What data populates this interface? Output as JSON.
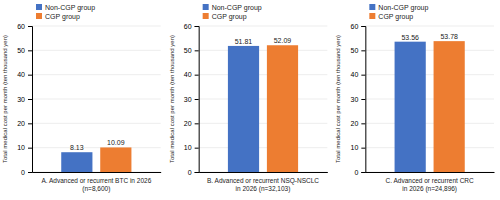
{
  "chart_data": [
    {
      "type": "bar",
      "title": "A. Advanced or recurrent BTC in 2026\n(n=8,600)",
      "ylabel": "Total medical cost per month (ten thousand yen)",
      "categories": [
        null
      ],
      "series": [
        {
          "name": "Non-CGP group",
          "color": "#4472c4",
          "values": [
            8.13
          ]
        },
        {
          "name": "CGP group",
          "color": "#ed7d31",
          "values": [
            10.09
          ]
        }
      ],
      "ylim": [
        0,
        60
      ],
      "yticks": [
        0,
        10,
        20,
        30,
        40,
        50,
        60
      ],
      "grid": true,
      "legend": "upper left",
      "data_labels": true,
      "tick_labels": "y"
    },
    {
      "type": "bar",
      "title": "B. Advanced or recurrent NSQ-NSCLC\nin 2026 (n=32,103)",
      "ylabel": "Total medical cost per month (ten thousand yen)",
      "categories": [
        null
      ],
      "series": [
        {
          "name": "Non-CGP group",
          "color": "#4472c4",
          "values": [
            51.81
          ]
        },
        {
          "name": "CGP group",
          "color": "#ed7d31",
          "values": [
            52.09
          ]
        }
      ],
      "ylim": [
        0,
        60
      ],
      "yticks": [
        0,
        10,
        20,
        30,
        40,
        50,
        60
      ],
      "grid": true,
      "legend": "upper left",
      "data_labels": true,
      "tick_labels": "y"
    },
    {
      "type": "bar",
      "title": "C. Advanced or recurrent CRC\nin 2026 (n=24,896)",
      "ylabel": "Total medical cost per month (ten thousand yen)",
      "categories": [
        null
      ],
      "series": [
        {
          "name": "Non-CGP group",
          "color": "#4472c4",
          "values": [
            53.56
          ]
        },
        {
          "name": "CGP group",
          "color": "#ed7d31",
          "values": [
            53.78
          ]
        }
      ],
      "ylim": [
        0,
        60
      ],
      "yticks": [
        0,
        10,
        20,
        30,
        40,
        50,
        60
      ],
      "grid": true,
      "legend": "upper left",
      "data_labels": true,
      "tick_labels": "y"
    }
  ]
}
